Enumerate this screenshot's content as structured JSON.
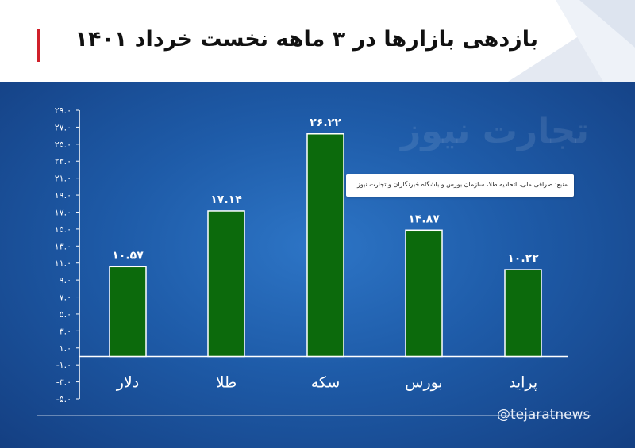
{
  "title": "بازدهی بازارها در ۳ ماهه نخست خرداد ۱۴۰۱",
  "watermark": "تجارت نیوز",
  "source_note": "منبع: صرافی ملی، اتحادیه طلا، سازمان بورس و باشگاه خبرنگاران و تجارت نیوز",
  "handle": "@tejaratnews",
  "colors": {
    "bar": "#0c6a0c",
    "title_accent": "#d0202a",
    "panel": "#1e5ba8"
  },
  "chart_data": {
    "type": "bar",
    "title": "بازدهی بازارها در ۳ ماهه نخست خرداد ۱۴۰۱",
    "categories": [
      "دلار",
      "طلا",
      "سکه",
      "بورس",
      "پراید"
    ],
    "values": [
      10.57,
      17.14,
      26.22,
      14.87,
      10.22
    ],
    "value_labels": [
      "۱۰.۵۷",
      "۱۷.۱۴",
      "۲۶.۲۲",
      "۱۴.۸۷",
      "۱۰.۲۲"
    ],
    "ylim": [
      -5,
      29
    ],
    "yticks": [
      29,
      27,
      25,
      23,
      21,
      19,
      17,
      15,
      13,
      11,
      9,
      7,
      5,
      3,
      1,
      -1,
      -3,
      -5
    ],
    "ytick_labels": [
      "۲۹.۰",
      "۲۷.۰",
      "۲۵.۰",
      "۲۳.۰",
      "۲۱.۰",
      "۱۹.۰",
      "۱۷.۰",
      "۱۵.۰",
      "۱۳.۰",
      "۱۱.۰",
      "۹.۰",
      "۷.۰",
      "۵.۰",
      "۳.۰",
      "۱.۰",
      "-۱.۰",
      "-۳.۰",
      "-۵.۰"
    ],
    "xlabel": "",
    "ylabel": "",
    "grid": false,
    "legend": "none"
  }
}
